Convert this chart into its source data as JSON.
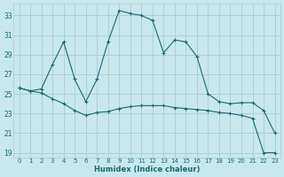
{
  "xlabel": "Humidex (Indice chaleur)",
  "background_color": "#c8e8ee",
  "grid_color": "#a8ccd4",
  "line_color": "#1a6b6b",
  "xlim": [
    -0.5,
    23.5
  ],
  "ylim": [
    18.5,
    34.2
  ],
  "yticks": [
    19,
    21,
    23,
    25,
    27,
    29,
    31,
    33
  ],
  "xticks": [
    0,
    1,
    2,
    3,
    4,
    5,
    6,
    7,
    8,
    9,
    10,
    11,
    12,
    13,
    14,
    15,
    16,
    17,
    18,
    19,
    20,
    21,
    22,
    23
  ],
  "series1_x": [
    0,
    1,
    2,
    3,
    4,
    5,
    6,
    7,
    8,
    9,
    10,
    11,
    12,
    13,
    14,
    15,
    16,
    17,
    18,
    19,
    20,
    21,
    22,
    23
  ],
  "series1_y": [
    25.6,
    25.3,
    25.5,
    28.0,
    30.3,
    26.5,
    24.2,
    26.5,
    30.3,
    33.5,
    33.2,
    33.0,
    32.5,
    29.2,
    30.5,
    30.3,
    28.8,
    25.0,
    24.2,
    24.0,
    24.1,
    24.1,
    23.3,
    21.0
  ],
  "series2_x": [
    0,
    1,
    2,
    3,
    4,
    5,
    6,
    7,
    8,
    9,
    10,
    11,
    12,
    13,
    14,
    15,
    16,
    17,
    18,
    19,
    20,
    21,
    22,
    23
  ],
  "series2_y": [
    25.6,
    25.3,
    25.1,
    24.5,
    24.0,
    23.3,
    22.8,
    23.1,
    23.2,
    23.5,
    23.7,
    23.8,
    23.8,
    23.8,
    23.6,
    23.5,
    23.4,
    23.3,
    23.1,
    23.0,
    22.8,
    22.5,
    19.0,
    19.0
  ]
}
